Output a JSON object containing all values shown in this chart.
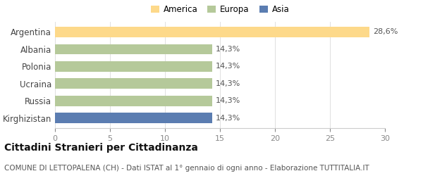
{
  "categories": [
    "Kirghizistan",
    "Russia",
    "Ucraina",
    "Polonia",
    "Albania",
    "Argentina"
  ],
  "values": [
    14.3,
    14.3,
    14.3,
    14.3,
    14.3,
    28.6
  ],
  "colors": [
    "#5b7db1",
    "#b5c99a",
    "#b5c99a",
    "#b5c99a",
    "#b5c99a",
    "#fdd98a"
  ],
  "labels": [
    "14,3%",
    "14,3%",
    "14,3%",
    "14,3%",
    "14,3%",
    "28,6%"
  ],
  "xlim": [
    0,
    30
  ],
  "xticks": [
    0,
    5,
    10,
    15,
    20,
    25,
    30
  ],
  "legend_entries": [
    {
      "label": "America",
      "color": "#fdd98a"
    },
    {
      "label": "Europa",
      "color": "#b5c99a"
    },
    {
      "label": "Asia",
      "color": "#5b7db1"
    }
  ],
  "title": "Cittadini Stranieri per Cittadinanza",
  "subtitle": "COMUNE DI LETTOPALENA (CH) - Dati ISTAT al 1° gennaio di ogni anno - Elaborazione TUTTITALIA.IT",
  "background_color": "#ffffff",
  "bar_height": 0.6,
  "title_fontsize": 10,
  "subtitle_fontsize": 7.5
}
